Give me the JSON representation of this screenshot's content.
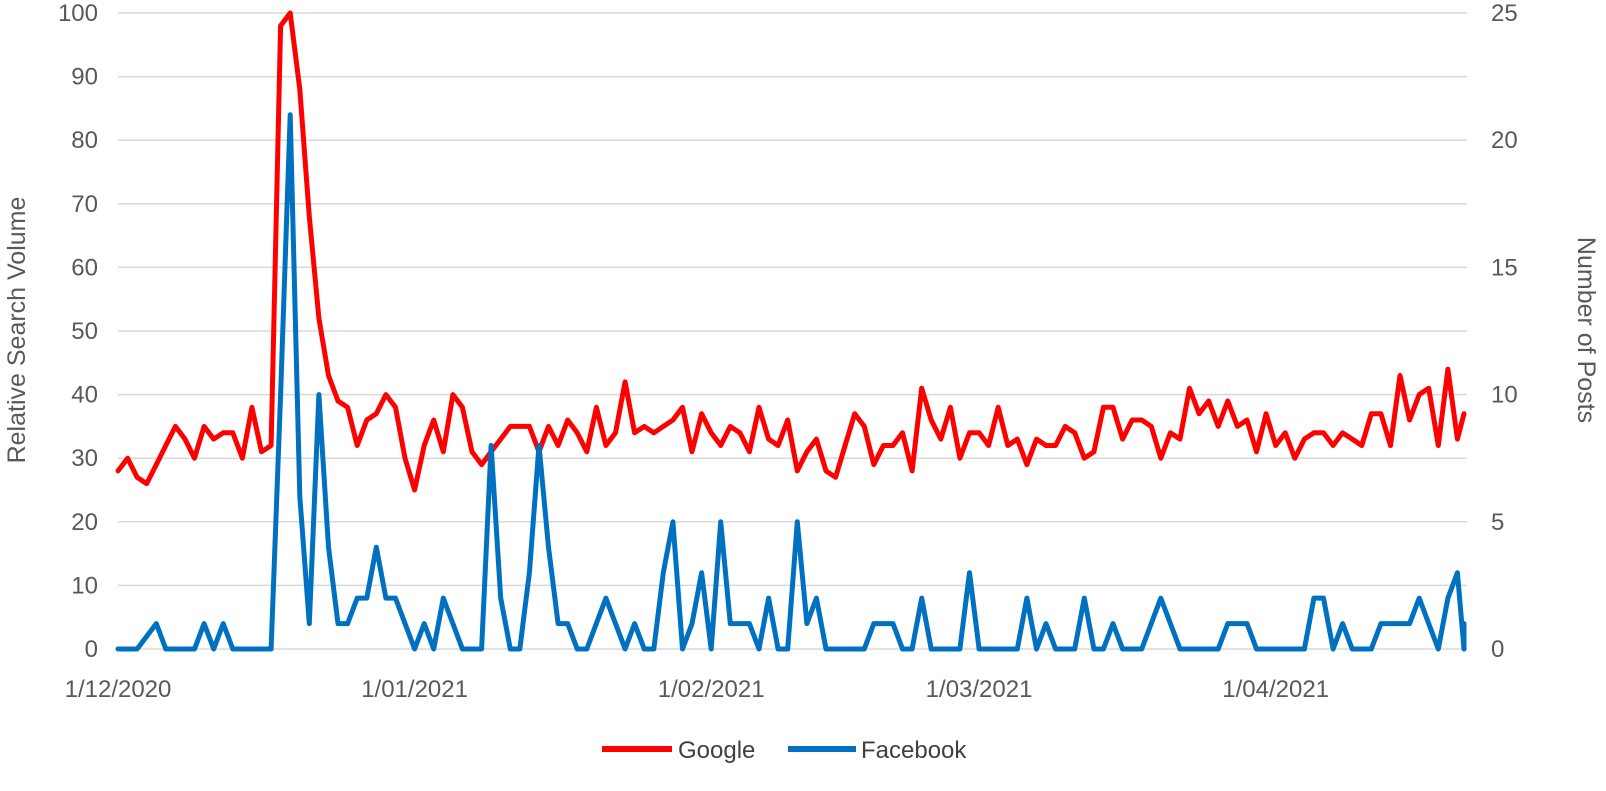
{
  "chart_data": {
    "type": "line",
    "x_type": "date",
    "x_start": "2020-12-01",
    "x_end": "2021-04-21",
    "x_tick_labels": [
      "1/12/2020",
      "1/01/2021",
      "1/02/2021",
      "1/03/2021",
      "1/04/2021"
    ],
    "x_tick_dates": [
      "2020-12-01",
      "2021-01-01",
      "2021-02-01",
      "2021-03-01",
      "2021-04-01"
    ],
    "y_left": {
      "label": "Relative Search Volume",
      "min": 0,
      "max": 100,
      "ticks": [
        0,
        10,
        20,
        30,
        40,
        50,
        60,
        70,
        80,
        90,
        100
      ]
    },
    "y_right": {
      "label": "Number of Posts",
      "min": 0,
      "max": 25,
      "ticks": [
        0,
        5,
        10,
        15,
        20,
        25
      ]
    },
    "grid": true,
    "legend_position": "bottom",
    "series": [
      {
        "name": "Google",
        "axis": "left",
        "color": "#ff0000",
        "points": [
          [
            "2020-12-01",
            28
          ],
          [
            "2020-12-02",
            30
          ],
          [
            "2020-12-03",
            27
          ],
          [
            "2020-12-04",
            26
          ],
          [
            "2020-12-05",
            29
          ],
          [
            "2020-12-06",
            32
          ],
          [
            "2020-12-07",
            35
          ],
          [
            "2020-12-08",
            33
          ],
          [
            "2020-12-09",
            30
          ],
          [
            "2020-12-10",
            35
          ],
          [
            "2020-12-11",
            33
          ],
          [
            "2020-12-12",
            34
          ],
          [
            "2020-12-13",
            34
          ],
          [
            "2020-12-14",
            30
          ],
          [
            "2020-12-15",
            38
          ],
          [
            "2020-12-16",
            31
          ],
          [
            "2020-12-17",
            32
          ],
          [
            "2020-12-18",
            98
          ],
          [
            "2020-12-19",
            100
          ],
          [
            "2020-12-20",
            88
          ],
          [
            "2020-12-21",
            68
          ],
          [
            "2020-12-22",
            52
          ],
          [
            "2020-12-23",
            43
          ],
          [
            "2020-12-24",
            39
          ],
          [
            "2020-12-25",
            38
          ],
          [
            "2020-12-26",
            32
          ],
          [
            "2020-12-27",
            36
          ],
          [
            "2020-12-28",
            37
          ],
          [
            "2020-12-29",
            40
          ],
          [
            "2020-12-30",
            38
          ],
          [
            "2020-12-31",
            30
          ],
          [
            "2021-01-01",
            25
          ],
          [
            "2021-01-02",
            32
          ],
          [
            "2021-01-03",
            36
          ],
          [
            "2021-01-04",
            31
          ],
          [
            "2021-01-05",
            40
          ],
          [
            "2021-01-06",
            38
          ],
          [
            "2021-01-07",
            31
          ],
          [
            "2021-01-08",
            29
          ],
          [
            "2021-01-09",
            31
          ],
          [
            "2021-01-10",
            33
          ],
          [
            "2021-01-11",
            35
          ],
          [
            "2021-01-12",
            35
          ],
          [
            "2021-01-13",
            35
          ],
          [
            "2021-01-14",
            31
          ],
          [
            "2021-01-15",
            35
          ],
          [
            "2021-01-16",
            32
          ],
          [
            "2021-01-17",
            36
          ],
          [
            "2021-01-18",
            34
          ],
          [
            "2021-01-19",
            31
          ],
          [
            "2021-01-20",
            38
          ],
          [
            "2021-01-21",
            32
          ],
          [
            "2021-01-22",
            34
          ],
          [
            "2021-01-23",
            42
          ],
          [
            "2021-01-24",
            34
          ],
          [
            "2021-01-25",
            35
          ],
          [
            "2021-01-26",
            34
          ],
          [
            "2021-01-27",
            35
          ],
          [
            "2021-01-28",
            36
          ],
          [
            "2021-01-29",
            38
          ],
          [
            "2021-01-30",
            31
          ],
          [
            "2021-01-31",
            37
          ],
          [
            "2021-02-01",
            34
          ],
          [
            "2021-02-02",
            32
          ],
          [
            "2021-02-03",
            35
          ],
          [
            "2021-02-04",
            34
          ],
          [
            "2021-02-05",
            31
          ],
          [
            "2021-02-06",
            38
          ],
          [
            "2021-02-07",
            33
          ],
          [
            "2021-02-08",
            32
          ],
          [
            "2021-02-09",
            36
          ],
          [
            "2021-02-10",
            28
          ],
          [
            "2021-02-11",
            31
          ],
          [
            "2021-02-12",
            33
          ],
          [
            "2021-02-13",
            28
          ],
          [
            "2021-02-14",
            27
          ],
          [
            "2021-02-15",
            32
          ],
          [
            "2021-02-16",
            37
          ],
          [
            "2021-02-17",
            35
          ],
          [
            "2021-02-18",
            29
          ],
          [
            "2021-02-19",
            32
          ],
          [
            "2021-02-20",
            32
          ],
          [
            "2021-02-21",
            34
          ],
          [
            "2021-02-22",
            28
          ],
          [
            "2021-02-23",
            41
          ],
          [
            "2021-02-24",
            36
          ],
          [
            "2021-02-25",
            33
          ],
          [
            "2021-02-26",
            38
          ],
          [
            "2021-02-27",
            30
          ],
          [
            "2021-02-28",
            34
          ],
          [
            "2021-03-01",
            34
          ],
          [
            "2021-03-02",
            32
          ],
          [
            "2021-03-03",
            38
          ],
          [
            "2021-03-04",
            32
          ],
          [
            "2021-03-05",
            33
          ],
          [
            "2021-03-06",
            29
          ],
          [
            "2021-03-07",
            33
          ],
          [
            "2021-03-08",
            32
          ],
          [
            "2021-03-09",
            32
          ],
          [
            "2021-03-10",
            35
          ],
          [
            "2021-03-11",
            34
          ],
          [
            "2021-03-12",
            30
          ],
          [
            "2021-03-13",
            31
          ],
          [
            "2021-03-14",
            38
          ],
          [
            "2021-03-15",
            38
          ],
          [
            "2021-03-16",
            33
          ],
          [
            "2021-03-17",
            36
          ],
          [
            "2021-03-18",
            36
          ],
          [
            "2021-03-19",
            35
          ],
          [
            "2021-03-20",
            30
          ],
          [
            "2021-03-21",
            34
          ],
          [
            "2021-03-22",
            33
          ],
          [
            "2021-03-23",
            41
          ],
          [
            "2021-03-24",
            37
          ],
          [
            "2021-03-25",
            39
          ],
          [
            "2021-03-26",
            35
          ],
          [
            "2021-03-27",
            39
          ],
          [
            "2021-03-28",
            35
          ],
          [
            "2021-03-29",
            36
          ],
          [
            "2021-03-30",
            31
          ],
          [
            "2021-03-31",
            37
          ],
          [
            "2021-04-01",
            32
          ],
          [
            "2021-04-02",
            34
          ],
          [
            "2021-04-03",
            30
          ],
          [
            "2021-04-04",
            33
          ],
          [
            "2021-04-05",
            34
          ],
          [
            "2021-04-06",
            34
          ],
          [
            "2021-04-07",
            32
          ],
          [
            "2021-04-08",
            34
          ],
          [
            "2021-04-09",
            33
          ],
          [
            "2021-04-10",
            32
          ],
          [
            "2021-04-11",
            37
          ],
          [
            "2021-04-12",
            37
          ],
          [
            "2021-04-13",
            32
          ],
          [
            "2021-04-14",
            43
          ],
          [
            "2021-04-15",
            36
          ],
          [
            "2021-04-16",
            40
          ],
          [
            "2021-04-17",
            41
          ],
          [
            "2021-04-18",
            32
          ],
          [
            "2021-04-19",
            44
          ],
          [
            "2021-04-20",
            33
          ],
          [
            "2021-04-21",
            37
          ]
        ]
      },
      {
        "name": "Facebook",
        "axis": "right",
        "color": "#0070c0",
        "points": [
          [
            "2020-12-01",
            0
          ],
          [
            "2020-12-03",
            0
          ],
          [
            "2020-12-05",
            1
          ],
          [
            "2020-12-06",
            0
          ],
          [
            "2020-12-09",
            0
          ],
          [
            "2020-12-10",
            1
          ],
          [
            "2020-12-11",
            0
          ],
          [
            "2020-12-12",
            1
          ],
          [
            "2020-12-13",
            0
          ],
          [
            "2020-12-17",
            0
          ],
          [
            "2020-12-18",
            10
          ],
          [
            "2020-12-19",
            21
          ],
          [
            "2020-12-20",
            6
          ],
          [
            "2020-12-21",
            1
          ],
          [
            "2020-12-22",
            10
          ],
          [
            "2020-12-23",
            4
          ],
          [
            "2020-12-24",
            1
          ],
          [
            "2020-12-25",
            1
          ],
          [
            "2020-12-26",
            2
          ],
          [
            "2020-12-27",
            2
          ],
          [
            "2020-12-28",
            4
          ],
          [
            "2020-12-29",
            2
          ],
          [
            "2020-12-30",
            2
          ],
          [
            "2021-01-01",
            0
          ],
          [
            "2021-01-02",
            1
          ],
          [
            "2021-01-03",
            0
          ],
          [
            "2021-01-04",
            2
          ],
          [
            "2021-01-06",
            0
          ],
          [
            "2021-01-08",
            0
          ],
          [
            "2021-01-09",
            8
          ],
          [
            "2021-01-10",
            2
          ],
          [
            "2021-01-11",
            0
          ],
          [
            "2021-01-12",
            0
          ],
          [
            "2021-01-13",
            3
          ],
          [
            "2021-01-14",
            8
          ],
          [
            "2021-01-15",
            4
          ],
          [
            "2021-01-16",
            1
          ],
          [
            "2021-01-17",
            1
          ],
          [
            "2021-01-18",
            0
          ],
          [
            "2021-01-19",
            0
          ],
          [
            "2021-01-21",
            2
          ],
          [
            "2021-01-23",
            0
          ],
          [
            "2021-01-24",
            1
          ],
          [
            "2021-01-25",
            0
          ],
          [
            "2021-01-26",
            0
          ],
          [
            "2021-01-27",
            3
          ],
          [
            "2021-01-28",
            5
          ],
          [
            "2021-01-29",
            0
          ],
          [
            "2021-01-30",
            1
          ],
          [
            "2021-01-31",
            3
          ],
          [
            "2021-02-01",
            0
          ],
          [
            "2021-02-02",
            5
          ],
          [
            "2021-02-03",
            1
          ],
          [
            "2021-02-04",
            1
          ],
          [
            "2021-02-05",
            1
          ],
          [
            "2021-02-06",
            0
          ],
          [
            "2021-02-07",
            2
          ],
          [
            "2021-02-08",
            0
          ],
          [
            "2021-02-09",
            0
          ],
          [
            "2021-02-10",
            5
          ],
          [
            "2021-02-11",
            1
          ],
          [
            "2021-02-12",
            2
          ],
          [
            "2021-02-13",
            0
          ],
          [
            "2021-02-17",
            0
          ],
          [
            "2021-02-18",
            1
          ],
          [
            "2021-02-19",
            1
          ],
          [
            "2021-02-20",
            1
          ],
          [
            "2021-02-21",
            0
          ],
          [
            "2021-02-22",
            0
          ],
          [
            "2021-02-23",
            2
          ],
          [
            "2021-02-24",
            0
          ],
          [
            "2021-02-27",
            0
          ],
          [
            "2021-02-28",
            3
          ],
          [
            "2021-03-01",
            0
          ],
          [
            "2021-03-05",
            0
          ],
          [
            "2021-03-06",
            2
          ],
          [
            "2021-03-07",
            0
          ],
          [
            "2021-03-08",
            1
          ],
          [
            "2021-03-09",
            0
          ],
          [
            "2021-03-11",
            0
          ],
          [
            "2021-03-12",
            2
          ],
          [
            "2021-03-13",
            0
          ],
          [
            "2021-03-14",
            0
          ],
          [
            "2021-03-15",
            1
          ],
          [
            "2021-03-16",
            0
          ],
          [
            "2021-03-18",
            0
          ],
          [
            "2021-03-20",
            2
          ],
          [
            "2021-03-22",
            0
          ],
          [
            "2021-03-26",
            0
          ],
          [
            "2021-03-27",
            1
          ],
          [
            "2021-03-28",
            1
          ],
          [
            "2021-03-29",
            1
          ],
          [
            "2021-03-30",
            0
          ],
          [
            "2021-04-04",
            0
          ],
          [
            "2021-04-05",
            2
          ],
          [
            "2021-04-06",
            2
          ],
          [
            "2021-04-07",
            0
          ],
          [
            "2021-04-08",
            1
          ],
          [
            "2021-04-09",
            0
          ],
          [
            "2021-04-11",
            0
          ],
          [
            "2021-04-12",
            1
          ],
          [
            "2021-04-13",
            1
          ],
          [
            "2021-04-14",
            1
          ],
          [
            "2021-04-15",
            1
          ],
          [
            "2021-04-16",
            2
          ],
          [
            "2021-04-17",
            1
          ],
          [
            "2021-04-18",
            0
          ],
          [
            "2021-04-19",
            2
          ],
          [
            "2021-04-20",
            3
          ],
          [
            "2021-04-21",
            0
          ],
          [
            "2021-04-22",
            0
          ],
          [
            "2021-04-23",
            1
          ],
          [
            "2021-04-24",
            0
          ]
        ]
      }
    ]
  }
}
